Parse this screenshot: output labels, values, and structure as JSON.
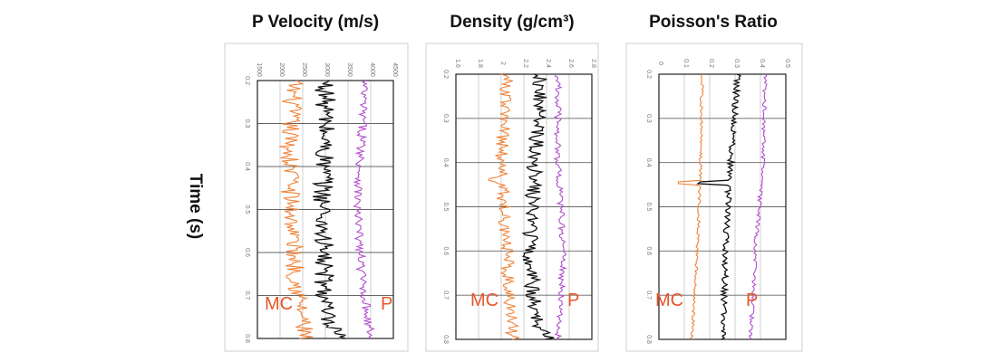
{
  "figure": {
    "ylabel": "Time (s)",
    "colors": {
      "mc": "#f0843a",
      "black": "#111111",
      "p": "#b24fd0",
      "grid": "#666666",
      "frame": "#cfcfcf"
    }
  },
  "chart_data": [
    {
      "type": "line",
      "title": "P Velocity (m/s)",
      "xlabel": "",
      "ylabel": "Time (s)",
      "xticks": [
        "1500",
        "2000",
        "2500",
        "3000",
        "3500",
        "4000",
        "4500"
      ],
      "xlim": [
        1500,
        4500
      ],
      "yticks": [
        "0.2",
        "0.3",
        "0.4",
        "0.5",
        "0.6",
        "0.7",
        "0.8"
      ],
      "ylim": [
        0.2,
        0.8
      ],
      "legend_labels": [
        "MC",
        "P"
      ],
      "series": [
        {
          "color_key": "mc",
          "base": 2250,
          "amp": 220,
          "spike_t": 0.42,
          "spike": 300,
          "knots": [
            [
              0.2,
              2300
            ],
            [
              0.35,
              2200
            ],
            [
              0.5,
              2250
            ],
            [
              0.65,
              2350
            ],
            [
              0.8,
              2550
            ]
          ]
        },
        {
          "color_key": "black",
          "base": 3000,
          "amp": 230,
          "knots": [
            [
              0.2,
              3000
            ],
            [
              0.3,
              3000
            ],
            [
              0.45,
              2950
            ],
            [
              0.6,
              2950
            ],
            [
              0.76,
              3000
            ],
            [
              0.8,
              3300
            ]
          ]
        },
        {
          "color_key": "p",
          "base": 3800,
          "amp": 100,
          "knots": [
            [
              0.2,
              3850
            ],
            [
              0.35,
              3800
            ],
            [
              0.5,
              3700
            ],
            [
              0.65,
              3800
            ],
            [
              0.8,
              4000
            ]
          ]
        }
      ]
    },
    {
      "type": "line",
      "title": "Density (g/cm³)",
      "xlabel": "",
      "ylabel": "Time (s)",
      "xticks": [
        "1.6",
        "1.8",
        "2",
        "2.2",
        "2.4",
        "2.6",
        "2.8"
      ],
      "xlim": [
        1.6,
        2.8
      ],
      "yticks": [
        "0.2",
        "0.3",
        "0.4",
        "0.5",
        "0.6",
        "0.7",
        "0.8"
      ],
      "ylim": [
        0.2,
        0.8
      ],
      "legend_labels": [
        "MC",
        "P"
      ],
      "series": [
        {
          "color_key": "mc",
          "base": 2.05,
          "amp": 0.06,
          "spike_t": 0.44,
          "spike": -0.08,
          "knots": [
            [
              0.2,
              2.05
            ],
            [
              0.4,
              2.0
            ],
            [
              0.6,
              2.05
            ],
            [
              0.8,
              2.1
            ]
          ]
        },
        {
          "color_key": "black",
          "base": 2.3,
          "amp": 0.07,
          "knots": [
            [
              0.2,
              2.35
            ],
            [
              0.4,
              2.3
            ],
            [
              0.6,
              2.25
            ],
            [
              0.76,
              2.3
            ],
            [
              0.8,
              2.45
            ]
          ]
        },
        {
          "color_key": "p",
          "base": 2.55,
          "amp": 0.03,
          "knots": [
            [
              0.2,
              2.5
            ],
            [
              0.4,
              2.5
            ],
            [
              0.6,
              2.55
            ],
            [
              0.8,
              2.5
            ]
          ]
        }
      ]
    },
    {
      "type": "line",
      "title": "Poisson's Ratio",
      "xlabel": "",
      "ylabel": "Time (s)",
      "xticks": [
        "0",
        "0.1",
        "0.2",
        "0.3",
        "0.4",
        "0.5"
      ],
      "xlim": [
        0,
        0.5
      ],
      "yticks": [
        "0.2",
        "0.3",
        "0.4",
        "0.5",
        "0.6",
        "0.7",
        "0.8"
      ],
      "ylim": [
        0.2,
        0.8
      ],
      "legend_labels": [
        "MC",
        "P"
      ],
      "series": [
        {
          "color_key": "mc",
          "base": 0.16,
          "amp": 0.006,
          "spike_t": 0.445,
          "spike": -0.09,
          "knots": [
            [
              0.2,
              0.17
            ],
            [
              0.4,
              0.165
            ],
            [
              0.55,
              0.155
            ],
            [
              0.7,
              0.14
            ],
            [
              0.8,
              0.13
            ]
          ]
        },
        {
          "color_key": "black",
          "base": 0.3,
          "amp": 0.012,
          "spike_t": 0.445,
          "spike": -0.12,
          "knots": [
            [
              0.2,
              0.31
            ],
            [
              0.35,
              0.29
            ],
            [
              0.5,
              0.27
            ],
            [
              0.65,
              0.26
            ],
            [
              0.8,
              0.25
            ]
          ]
        },
        {
          "color_key": "p",
          "base": 0.4,
          "amp": 0.008,
          "knots": [
            [
              0.2,
              0.42
            ],
            [
              0.4,
              0.41
            ],
            [
              0.6,
              0.38
            ],
            [
              0.8,
              0.36
            ]
          ]
        }
      ]
    }
  ]
}
